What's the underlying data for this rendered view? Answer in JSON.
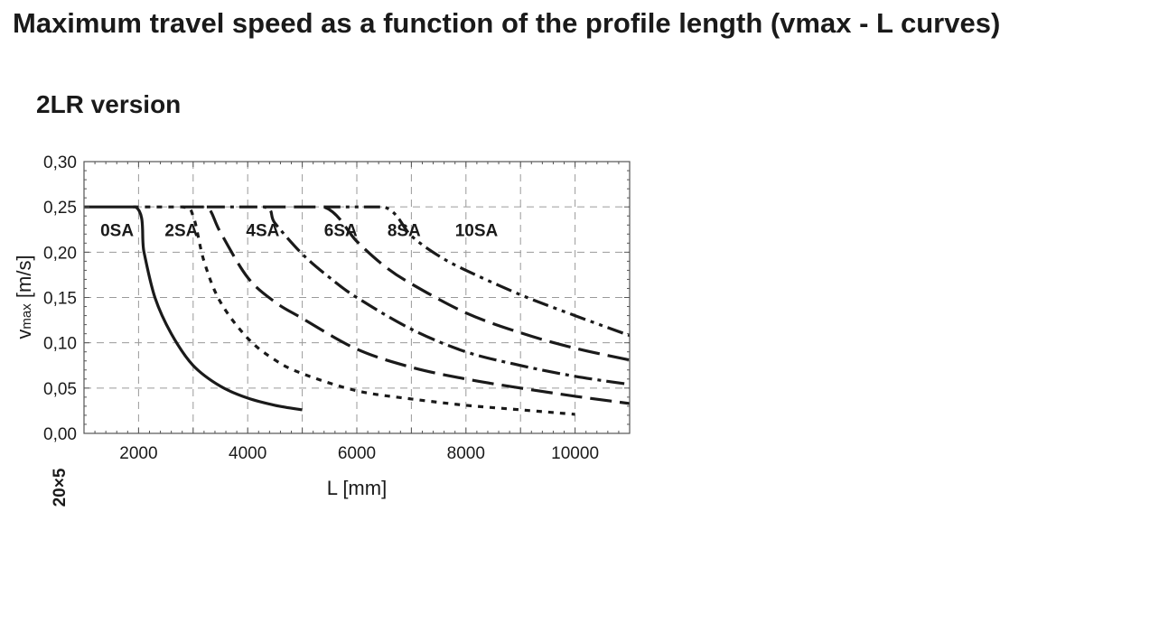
{
  "page": {
    "title": "Maximum travel speed as a function of the profile length (vmax - L curves)",
    "subtitle": "2LR version",
    "side_note": "20×5"
  },
  "chart_data": {
    "type": "line",
    "xlabel": "L [mm]",
    "ylabel": "vmax [m/s]",
    "ylabel_main": "v",
    "ylabel_sub": "max",
    "ylabel_unit": " [m/s]",
    "xlim": [
      1000,
      11000
    ],
    "ylim": [
      0,
      0.3
    ],
    "xticks": [
      2000,
      4000,
      6000,
      8000,
      10000
    ],
    "xtick_labels": [
      "2000",
      "4000",
      "6000",
      "8000",
      "10000"
    ],
    "yticks": [
      0,
      0.05,
      0.1,
      0.15,
      0.2,
      0.25,
      0.3
    ],
    "ytick_labels": [
      "0,00",
      "0,05",
      "0,10",
      "0,15",
      "0,20",
      "0,25",
      "0,30"
    ],
    "grid": true,
    "series": [
      {
        "name": "0SA",
        "style": "solid",
        "label_at": [
          1300,
          0.225
        ],
        "x": [
          1000,
          1950,
          2100,
          2300,
          2600,
          3000,
          3500,
          4000,
          4500,
          5000
        ],
        "y": [
          0.25,
          0.25,
          0.2,
          0.15,
          0.11,
          0.075,
          0.052,
          0.039,
          0.031,
          0.026
        ]
      },
      {
        "name": "2SA",
        "style": "short-dash",
        "label_at": [
          2480,
          0.225
        ],
        "x": [
          1900,
          2800,
          3000,
          3200,
          3500,
          4000,
          4500,
          5000,
          6000,
          7000,
          8000,
          9000,
          10000
        ],
        "y": [
          0.25,
          0.25,
          0.24,
          0.19,
          0.145,
          0.105,
          0.081,
          0.066,
          0.047,
          0.038,
          0.031,
          0.026,
          0.021
        ]
      },
      {
        "name": "4SA",
        "style": "long-dash",
        "label_at": [
          3970,
          0.225
        ],
        "x": [
          2800,
          3250,
          3500,
          4000,
          4500,
          5000,
          6000,
          7000,
          8000,
          9000,
          10000,
          11000
        ],
        "y": [
          0.25,
          0.25,
          0.222,
          0.172,
          0.145,
          0.127,
          0.093,
          0.073,
          0.06,
          0.05,
          0.041,
          0.033
        ]
      },
      {
        "name": "6SA",
        "style": "dash-dot",
        "label_at": [
          5400,
          0.225
        ],
        "x": [
          3250,
          4300,
          4500,
          5000,
          5500,
          6000,
          7000,
          8000,
          9000,
          10000,
          11000
        ],
        "y": [
          0.25,
          0.25,
          0.232,
          0.198,
          0.172,
          0.15,
          0.115,
          0.09,
          0.075,
          0.063,
          0.054
        ]
      },
      {
        "name": "8SA",
        "style": "long-dash",
        "label_at": [
          6560,
          0.225
        ],
        "x": [
          4300,
          5400,
          6000,
          6500,
          7000,
          8000,
          9000,
          10000,
          11000
        ],
        "y": [
          0.25,
          0.25,
          0.212,
          0.185,
          0.165,
          0.133,
          0.111,
          0.094,
          0.081
        ]
      },
      {
        "name": "10SA",
        "style": "dash-dot-dot",
        "label_at": [
          7800,
          0.225
        ],
        "x": [
          5400,
          6500,
          7000,
          7500,
          8000,
          9000,
          10000,
          11000
        ],
        "y": [
          0.25,
          0.25,
          0.218,
          0.196,
          0.18,
          0.153,
          0.13,
          0.108
        ]
      }
    ]
  }
}
